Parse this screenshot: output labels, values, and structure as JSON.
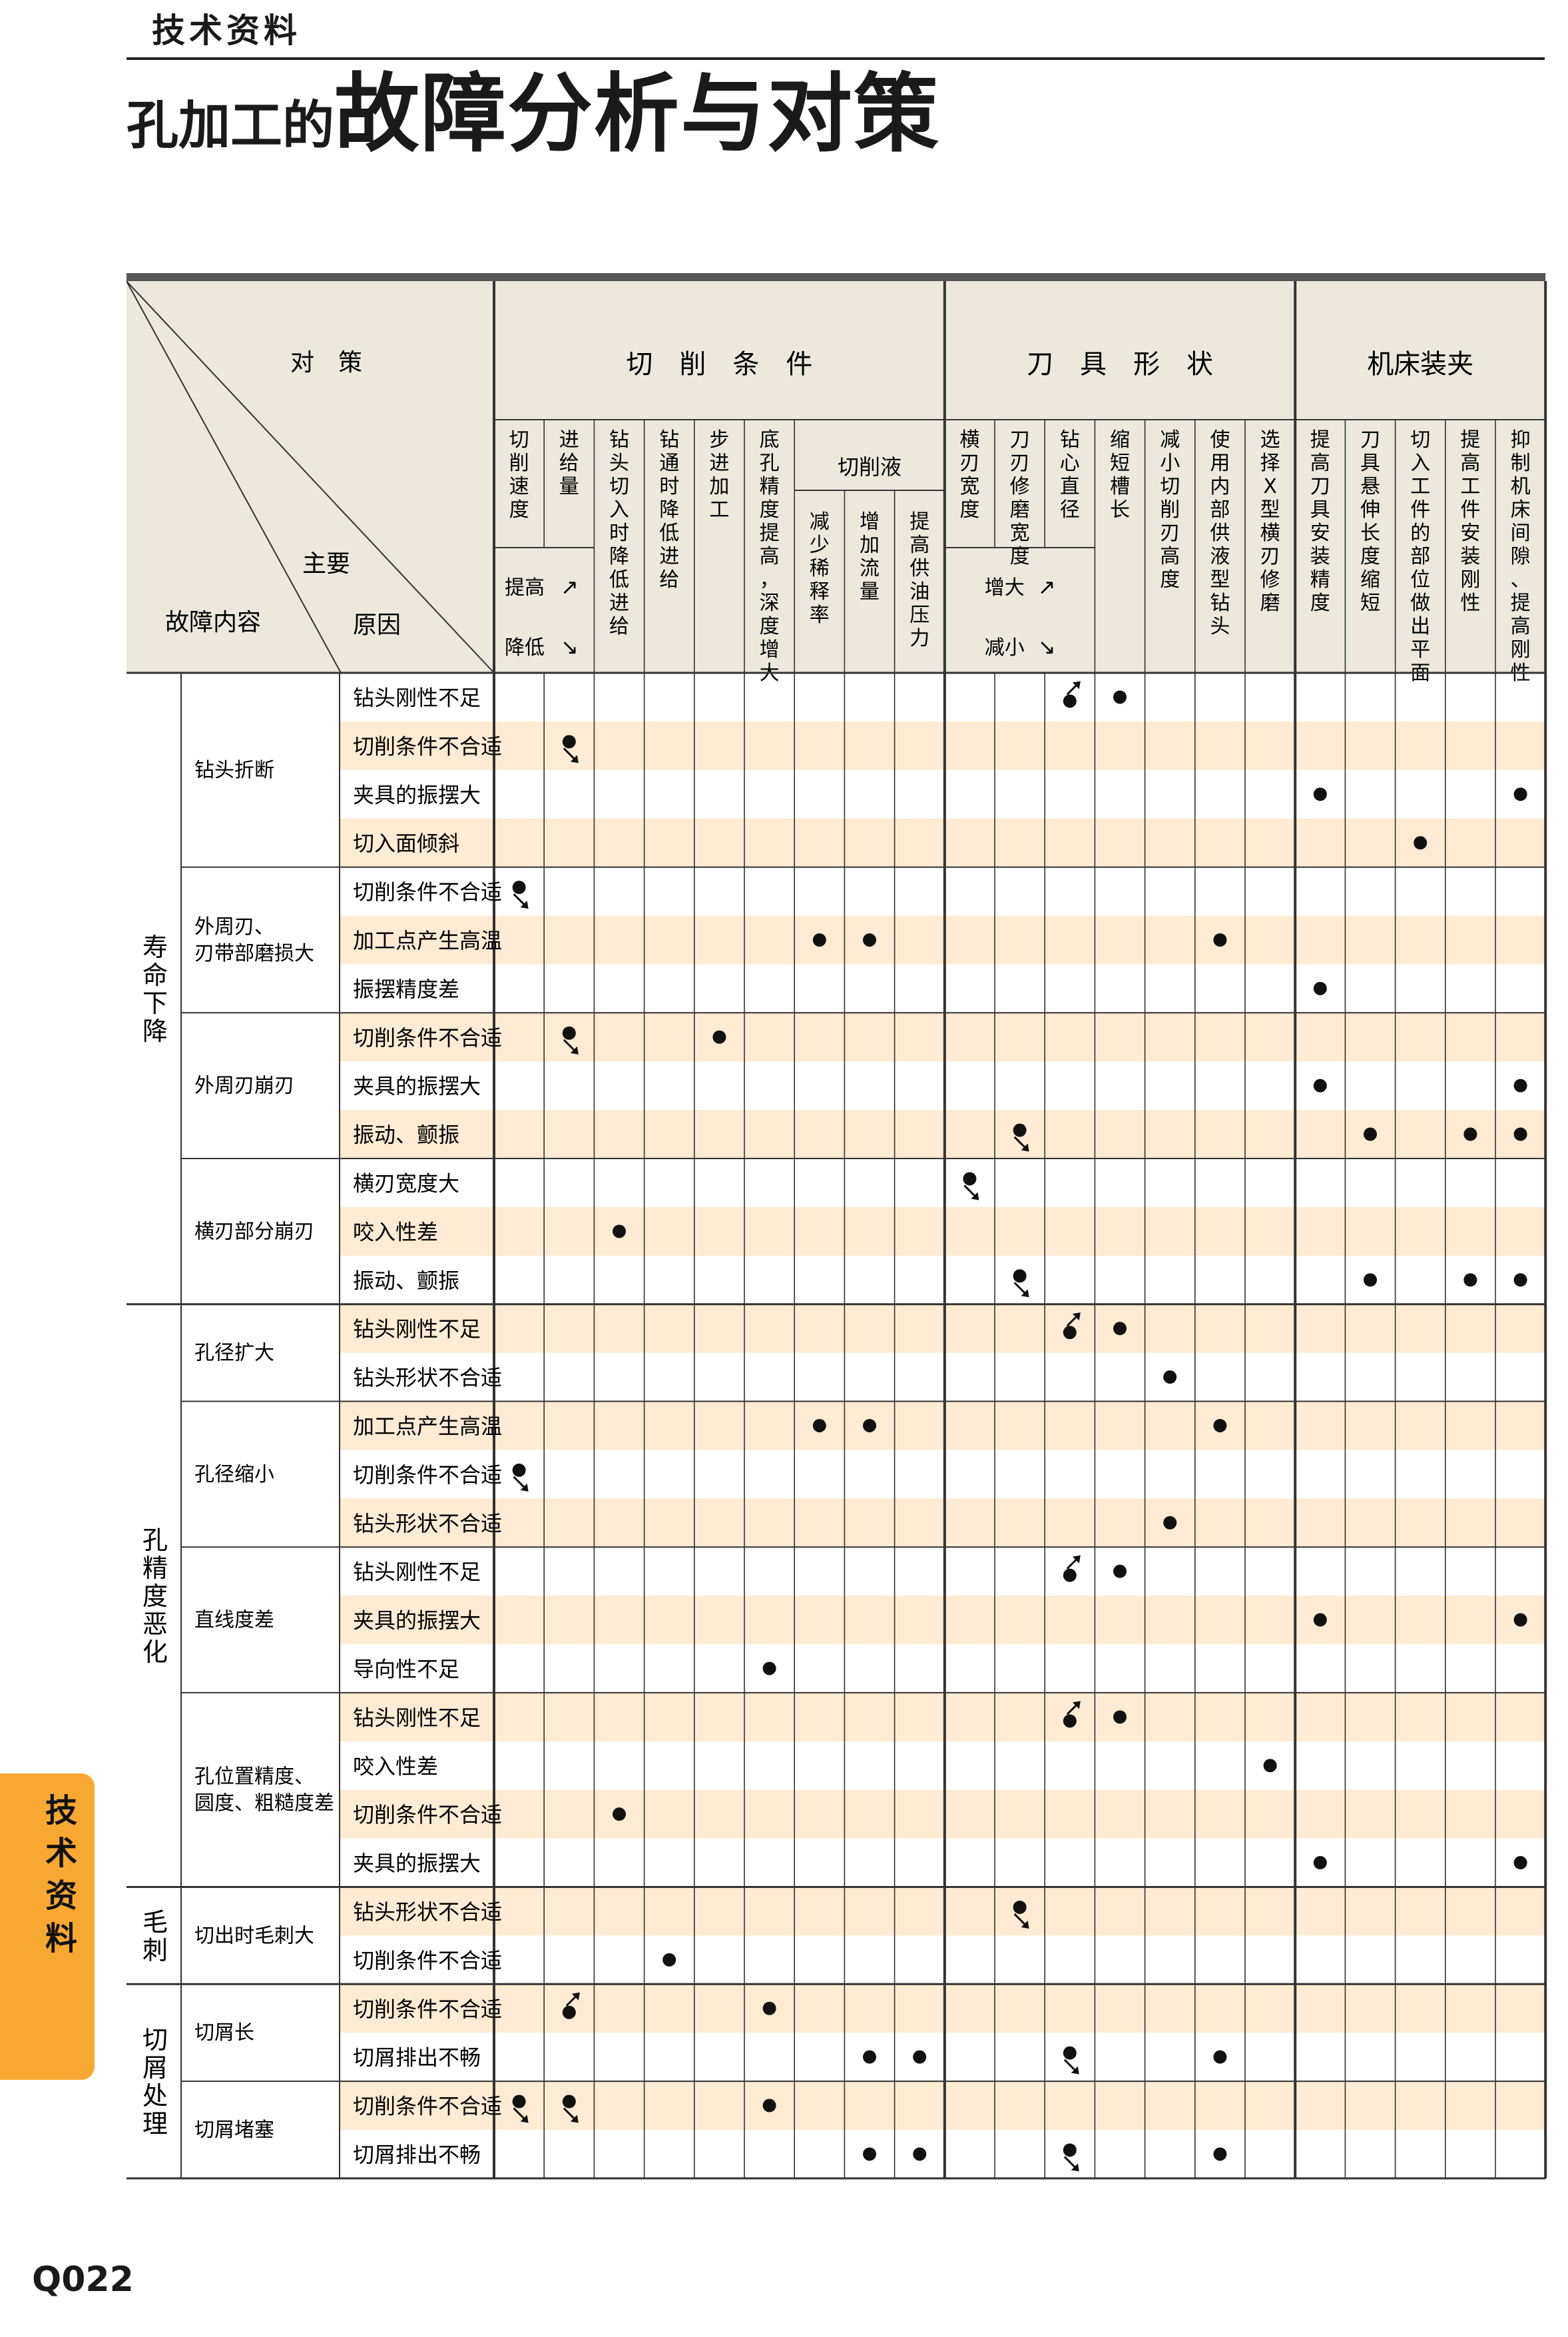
{
  "header": {
    "label": "技术资料",
    "title_small": "孔加工的",
    "title_big": "故障分析与对策"
  },
  "corner": {
    "measures": "对　策",
    "main": "主要",
    "cause": "原因",
    "fault": "故障内容"
  },
  "groups": [
    {
      "label": "切　削　条　件",
      "from": 0,
      "to": 8
    },
    {
      "label": "刀　具　形　状",
      "from": 9,
      "to": 15
    },
    {
      "label": "机床装夹",
      "from": 16,
      "to": 20
    }
  ],
  "columns": [
    {
      "label": "切削速度"
    },
    {
      "label": "进给量"
    },
    {
      "label": "钻头切入时降低进给"
    },
    {
      "label": "钻通时降低进给"
    },
    {
      "label": "步进加工"
    },
    {
      "label": "底孔精度提高，深度增大"
    },
    {
      "label": "减少稀释率"
    },
    {
      "label": "增加流量"
    },
    {
      "label": "提高供油压力"
    },
    {
      "label": "横刃宽度"
    },
    {
      "label": "刀刃修磨宽度"
    },
    {
      "label": "钻心直径"
    },
    {
      "label": "缩短槽长"
    },
    {
      "label": "减小切削刃高度"
    },
    {
      "label": "使用内部供液型钻头"
    },
    {
      "label": "选择X型横刃修磨"
    },
    {
      "label": "提高刀具安装精度"
    },
    {
      "label": "刀具悬伸长度缩短"
    },
    {
      "label": "切入工件的部位做出平面"
    },
    {
      "label": "提高工件安装刚性"
    },
    {
      "label": "抑制机床间隙、提高刚性"
    }
  ],
  "coolant_header": "切削液",
  "legend": {
    "raise": "提高",
    "lower": "降低",
    "increase": "增大",
    "decrease": "减小"
  },
  "marks_legend": {
    "dot": "●",
    "dot_up": "● with ↗ arrow",
    "dot_down": "● with ↘ arrow"
  },
  "sections": [
    {
      "category": "寿命下降",
      "subs": [
        {
          "name": "钻头折断",
          "rows": [
            {
              "cause": "钻头刚性不足",
              "marks": [
                [
                  11,
                  "u"
                ],
                [
                  12,
                  "d"
                ]
              ]
            },
            {
              "cause": "切削条件不合适",
              "marks": [
                [
                  1,
                  "s"
                ]
              ]
            },
            {
              "cause": "夹具的振摆大",
              "marks": [
                [
                  16,
                  "d"
                ],
                [
                  20,
                  "d"
                ]
              ]
            },
            {
              "cause": "切入面倾斜",
              "marks": [
                [
                  18,
                  "d"
                ]
              ]
            }
          ]
        },
        {
          "name": "外周刃、\n刃带部磨损大",
          "rows": [
            {
              "cause": "切削条件不合适",
              "marks": [
                [
                  0,
                  "s"
                ]
              ]
            },
            {
              "cause": "加工点产生高温",
              "marks": [
                [
                  6,
                  "d"
                ],
                [
                  7,
                  "d"
                ],
                [
                  14,
                  "d"
                ]
              ]
            },
            {
              "cause": "振摆精度差",
              "marks": [
                [
                  16,
                  "d"
                ]
              ]
            }
          ]
        },
        {
          "name": "外周刃崩刃",
          "rows": [
            {
              "cause": "切削条件不合适",
              "marks": [
                [
                  1,
                  "s"
                ],
                [
                  4,
                  "d"
                ]
              ]
            },
            {
              "cause": "夹具的振摆大",
              "marks": [
                [
                  16,
                  "d"
                ],
                [
                  20,
                  "d"
                ]
              ]
            },
            {
              "cause": "振动、颤振",
              "marks": [
                [
                  10,
                  "s"
                ],
                [
                  17,
                  "d"
                ],
                [
                  19,
                  "d"
                ],
                [
                  20,
                  "d"
                ]
              ]
            }
          ]
        },
        {
          "name": "横刃部分崩刃",
          "rows": [
            {
              "cause": "横刃宽度大",
              "marks": [
                [
                  9,
                  "s"
                ]
              ]
            },
            {
              "cause": "咬入性差",
              "marks": [
                [
                  2,
                  "d"
                ]
              ]
            },
            {
              "cause": "振动、颤振",
              "marks": [
                [
                  10,
                  "s"
                ],
                [
                  17,
                  "d"
                ],
                [
                  19,
                  "d"
                ],
                [
                  20,
                  "d"
                ]
              ]
            }
          ]
        }
      ]
    },
    {
      "category": "孔精度恶化",
      "subs": [
        {
          "name": "孔径扩大",
          "rows": [
            {
              "cause": "钻头刚性不足",
              "marks": [
                [
                  11,
                  "u"
                ],
                [
                  12,
                  "d"
                ]
              ]
            },
            {
              "cause": "钻头形状不合适",
              "marks": [
                [
                  13,
                  "d"
                ]
              ]
            }
          ]
        },
        {
          "name": "孔径缩小",
          "rows": [
            {
              "cause": "加工点产生高温",
              "marks": [
                [
                  6,
                  "d"
                ],
                [
                  7,
                  "d"
                ],
                [
                  14,
                  "d"
                ]
              ]
            },
            {
              "cause": "切削条件不合适",
              "marks": [
                [
                  0,
                  "s"
                ]
              ]
            },
            {
              "cause": "钻头形状不合适",
              "marks": [
                [
                  13,
                  "d"
                ]
              ]
            }
          ]
        },
        {
          "name": "直线度差",
          "rows": [
            {
              "cause": "钻头刚性不足",
              "marks": [
                [
                  11,
                  "u"
                ],
                [
                  12,
                  "d"
                ]
              ]
            },
            {
              "cause": "夹具的振摆大",
              "marks": [
                [
                  16,
                  "d"
                ],
                [
                  20,
                  "d"
                ]
              ]
            },
            {
              "cause": "导向性不足",
              "marks": [
                [
                  5,
                  "d"
                ]
              ]
            }
          ]
        },
        {
          "name": "孔位置精度、\n圆度、粗糙度差",
          "rows": [
            {
              "cause": "钻头刚性不足",
              "marks": [
                [
                  11,
                  "u"
                ],
                [
                  12,
                  "d"
                ]
              ]
            },
            {
              "cause": "咬入性差",
              "marks": [
                [
                  15,
                  "d"
                ]
              ]
            },
            {
              "cause": "切削条件不合适",
              "marks": [
                [
                  2,
                  "d"
                ]
              ]
            },
            {
              "cause": "夹具的振摆大",
              "marks": [
                [
                  16,
                  "d"
                ],
                [
                  20,
                  "d"
                ]
              ]
            }
          ]
        }
      ]
    },
    {
      "category": "毛刺",
      "subs": [
        {
          "name": "切出时毛刺大",
          "rows": [
            {
              "cause": "钻头形状不合适",
              "marks": [
                [
                  10,
                  "s"
                ]
              ]
            },
            {
              "cause": "切削条件不合适",
              "marks": [
                [
                  3,
                  "d"
                ]
              ]
            }
          ]
        }
      ]
    },
    {
      "category": "切屑处理",
      "subs": [
        {
          "name": "切屑长",
          "rows": [
            {
              "cause": "切削条件不合适",
              "marks": [
                [
                  1,
                  "u"
                ],
                [
                  5,
                  "d"
                ]
              ]
            },
            {
              "cause": "切屑排出不畅",
              "marks": [
                [
                  7,
                  "d"
                ],
                [
                  8,
                  "d"
                ],
                [
                  11,
                  "s"
                ],
                [
                  14,
                  "d"
                ]
              ]
            }
          ]
        },
        {
          "name": "切屑堵塞",
          "rows": [
            {
              "cause": "切削条件不合适",
              "marks": [
                [
                  0,
                  "s"
                ],
                [
                  1,
                  "s"
                ],
                [
                  5,
                  "d"
                ]
              ]
            },
            {
              "cause": "切屑排出不畅",
              "marks": [
                [
                  7,
                  "d"
                ],
                [
                  8,
                  "d"
                ],
                [
                  11,
                  "s"
                ],
                [
                  14,
                  "d"
                ]
              ]
            }
          ]
        }
      ]
    }
  ],
  "side_tab": "技术资料",
  "page_number": "Q022",
  "colors": {
    "stripe": "#fdebd3",
    "header_bg": "#ece8de",
    "tab": "#f7a832",
    "grid": "#333333"
  }
}
